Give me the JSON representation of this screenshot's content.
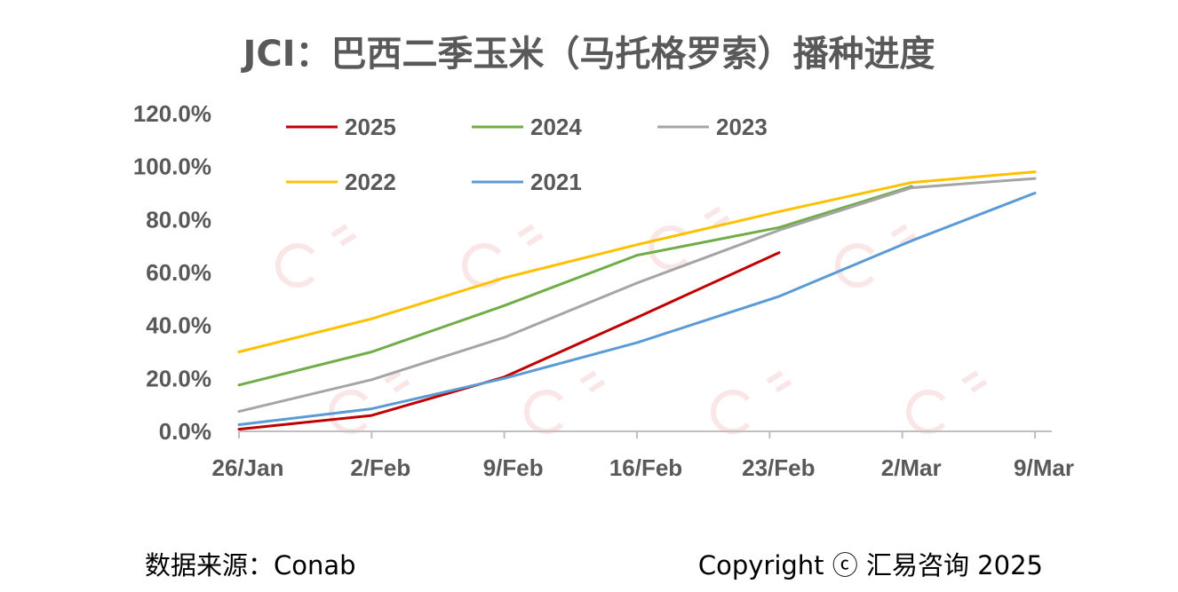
{
  "chart_data": {
    "type": "line",
    "title": "JCI：巴西二季玉米（马托格罗索）播种进度",
    "categories": [
      "26/Jan",
      "2/Feb",
      "9/Feb",
      "16/Feb",
      "23/Feb",
      "2/Mar",
      "9/Mar"
    ],
    "x": [
      0,
      7,
      14,
      21,
      28,
      35,
      42
    ],
    "ylim": [
      0,
      120
    ],
    "yticks": [
      "0.0%",
      "20.0%",
      "40.0%",
      "60.0%",
      "80.0%",
      "100.0%",
      "120.0%"
    ],
    "legend_position": "top-left inside plot, two rows",
    "series": [
      {
        "name": "2025",
        "color": "#C00000",
        "x": [
          0,
          7,
          14,
          21,
          28.5
        ],
        "values": [
          0.8,
          6.0,
          20.5,
          43.0,
          67.5
        ]
      },
      {
        "name": "2024",
        "color": "#70AD47",
        "x": [
          0,
          7,
          14,
          21,
          28.5,
          35.5
        ],
        "values": [
          17.5,
          30.0,
          47.5,
          66.5,
          77.0,
          92.5
        ]
      },
      {
        "name": "2023",
        "color": "#A5A5A5",
        "x": [
          0,
          7,
          14,
          21,
          28.5,
          35.5,
          42
        ],
        "values": [
          7.5,
          19.5,
          35.5,
          56.0,
          76.0,
          92.0,
          95.5
        ]
      },
      {
        "name": "2022",
        "color": "#FFC000",
        "x": [
          0,
          7,
          14,
          21,
          28.5,
          35.5,
          42
        ],
        "values": [
          30.0,
          42.5,
          58.0,
          70.5,
          83.0,
          94.0,
          98.0
        ]
      },
      {
        "name": "2021",
        "color": "#5B9BD5",
        "x": [
          0,
          7,
          14,
          21,
          28.5,
          35.5,
          42
        ],
        "values": [
          2.5,
          8.5,
          20.0,
          33.5,
          51.0,
          72.0,
          90.0
        ]
      }
    ]
  },
  "footer": {
    "source": "数据来源：Conab",
    "copyright": "Copyright ⓒ 汇易咨询 2025"
  }
}
